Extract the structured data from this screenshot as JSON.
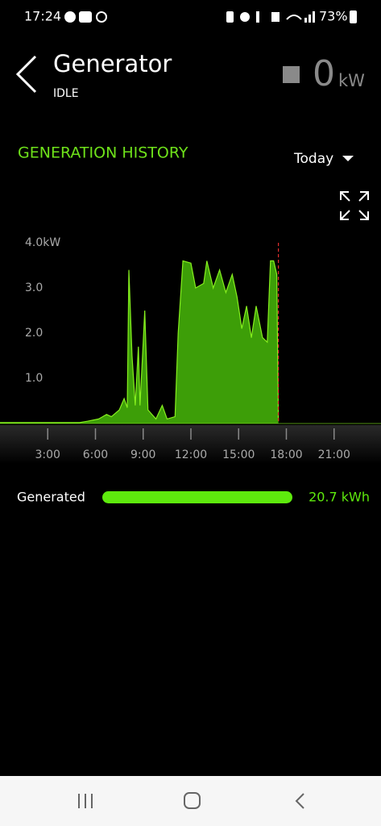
{
  "status_bar": {
    "time": "17:24",
    "battery": "73%"
  },
  "header": {
    "title": "Generator",
    "status": "IDLE",
    "power": "0",
    "unit": "kW"
  },
  "section": {
    "title": "GENERATION HISTORY",
    "period": "Today"
  },
  "chart_data": {
    "type": "area",
    "x": [
      0,
      1,
      2,
      3,
      4,
      5,
      5.5,
      6.2,
      6.7,
      7.0,
      7.5,
      7.8,
      8.0,
      8.1,
      8.3,
      8.5,
      8.7,
      8.8,
      9.0,
      9.1,
      9.3,
      9.8,
      10.2,
      10.5,
      11.0,
      11.2,
      11.5,
      12.0,
      12.3,
      12.8,
      13.0,
      13.4,
      13.8,
      14.2,
      14.6,
      14.9,
      15.2,
      15.5,
      15.8,
      16.1,
      16.5,
      16.8,
      17.0,
      17.2,
      17.4,
      17.5
    ],
    "values": [
      0.02,
      0.02,
      0.02,
      0.02,
      0.02,
      0.02,
      0.05,
      0.1,
      0.2,
      0.15,
      0.3,
      0.55,
      0.35,
      3.4,
      1.5,
      0.4,
      1.7,
      0.4,
      1.8,
      2.5,
      0.3,
      0.1,
      0.4,
      0.1,
      0.15,
      2.0,
      3.6,
      3.55,
      3.0,
      3.1,
      3.6,
      3.0,
      3.4,
      2.9,
      3.3,
      2.8,
      2.1,
      2.6,
      1.9,
      2.6,
      1.9,
      1.8,
      3.6,
      3.6,
      3.3,
      0.05
    ],
    "color": "#3d9e08",
    "line_color": "#86f01e",
    "xlim": [
      0,
      24
    ],
    "ylim": [
      0,
      4
    ],
    "xticks": [
      {
        "value": 3,
        "label": "3:00"
      },
      {
        "value": 6,
        "label": "6:00"
      },
      {
        "value": 9,
        "label": "9:00"
      },
      {
        "value": 12,
        "label": "12:00"
      },
      {
        "value": 15,
        "label": "15:00"
      },
      {
        "value": 18,
        "label": "18:00"
      },
      {
        "value": 21,
        "label": "21:00"
      }
    ],
    "yticks": [
      {
        "value": 1,
        "label": "1.0"
      },
      {
        "value": 2,
        "label": "2.0"
      },
      {
        "value": 3,
        "label": "3.0"
      },
      {
        "value": 4,
        "label": "4.0kW"
      }
    ]
  },
  "summary": {
    "label": "Generated",
    "value": "20.7 kWh"
  }
}
